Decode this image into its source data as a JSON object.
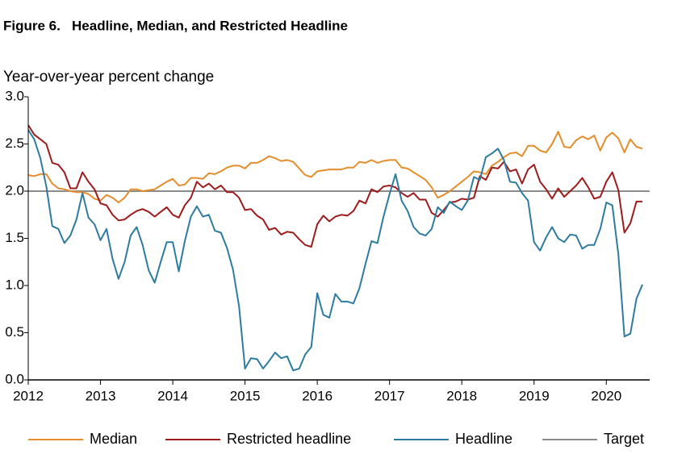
{
  "chart_data": {
    "type": "line",
    "title": "Figure 6.   Headline, Median, and Restricted Headline",
    "y_label": "Year-over-year percent change",
    "x": [
      2012,
      2012.083,
      2012.167,
      2012.25,
      2012.333,
      2012.417,
      2012.5,
      2012.583,
      2012.667,
      2012.75,
      2012.833,
      2012.917,
      2013,
      2013.083,
      2013.167,
      2013.25,
      2013.333,
      2013.417,
      2013.5,
      2013.583,
      2013.667,
      2013.75,
      2013.833,
      2013.917,
      2014,
      2014.083,
      2014.167,
      2014.25,
      2014.333,
      2014.417,
      2014.5,
      2014.583,
      2014.667,
      2014.75,
      2014.833,
      2014.917,
      2015,
      2015.083,
      2015.167,
      2015.25,
      2015.333,
      2015.417,
      2015.5,
      2015.583,
      2015.667,
      2015.75,
      2015.833,
      2015.917,
      2016,
      2016.083,
      2016.167,
      2016.25,
      2016.333,
      2016.417,
      2016.5,
      2016.583,
      2016.667,
      2016.75,
      2016.833,
      2016.917,
      2017,
      2017.083,
      2017.167,
      2017.25,
      2017.333,
      2017.417,
      2017.5,
      2017.583,
      2017.667,
      2017.75,
      2017.833,
      2017.917,
      2018,
      2018.083,
      2018.167,
      2018.25,
      2018.333,
      2018.417,
      2018.5,
      2018.583,
      2018.667,
      2018.75,
      2018.833,
      2018.917,
      2019,
      2019.083,
      2019.167,
      2019.25,
      2019.333,
      2019.417,
      2019.5,
      2019.583,
      2019.667,
      2019.75,
      2019.833,
      2019.917,
      2020,
      2020.083,
      2020.167,
      2020.25,
      2020.333,
      2020.417,
      2020.5
    ],
    "series": [
      {
        "name": "Median",
        "color": "#e38d2c",
        "values": [
          2.17,
          2.16,
          2.18,
          2.18,
          2.08,
          2.03,
          2.02,
          2.0,
          1.99,
          1.99,
          1.97,
          1.92,
          1.9,
          1.96,
          1.93,
          1.88,
          1.93,
          2.02,
          2.02,
          2.0,
          2.01,
          2.02,
          2.06,
          2.1,
          2.13,
          2.06,
          2.07,
          2.14,
          2.14,
          2.13,
          2.19,
          2.18,
          2.21,
          2.25,
          2.27,
          2.27,
          2.24,
          2.3,
          2.3,
          2.33,
          2.37,
          2.35,
          2.32,
          2.33,
          2.31,
          2.24,
          2.17,
          2.15,
          2.21,
          2.22,
          2.23,
          2.23,
          2.23,
          2.25,
          2.25,
          2.31,
          2.3,
          2.33,
          2.3,
          2.32,
          2.33,
          2.33,
          2.25,
          2.24,
          2.2,
          2.16,
          2.12,
          2.04,
          1.93,
          1.96,
          2.0,
          2.05,
          2.1,
          2.15,
          2.21,
          2.2,
          2.18,
          2.27,
          2.31,
          2.36,
          2.4,
          2.41,
          2.37,
          2.48,
          2.48,
          2.43,
          2.41,
          2.5,
          2.63,
          2.47,
          2.46,
          2.54,
          2.58,
          2.55,
          2.59,
          2.43,
          2.57,
          2.62,
          2.56,
          2.41,
          2.55,
          2.47,
          2.45
        ]
      },
      {
        "name": "Restricted headline",
        "color": "#9e1b1b",
        "values": [
          2.7,
          2.6,
          2.55,
          2.5,
          2.3,
          2.28,
          2.2,
          2.03,
          2.03,
          2.2,
          2.1,
          2.02,
          1.87,
          1.85,
          1.75,
          1.69,
          1.7,
          1.75,
          1.79,
          1.81,
          1.78,
          1.73,
          1.78,
          1.83,
          1.75,
          1.72,
          1.85,
          1.93,
          2.1,
          2.04,
          2.08,
          2.02,
          2.06,
          1.99,
          1.99,
          1.93,
          1.8,
          1.81,
          1.74,
          1.7,
          1.59,
          1.61,
          1.54,
          1.57,
          1.56,
          1.49,
          1.43,
          1.41,
          1.65,
          1.74,
          1.68,
          1.73,
          1.75,
          1.74,
          1.79,
          1.9,
          1.87,
          2.02,
          1.99,
          2.05,
          2.06,
          2.04,
          1.98,
          1.94,
          1.98,
          1.91,
          1.91,
          1.77,
          1.73,
          1.8,
          1.88,
          1.89,
          1.92,
          1.91,
          1.93,
          2.16,
          2.12,
          2.25,
          2.24,
          2.31,
          2.21,
          2.23,
          2.08,
          2.23,
          2.28,
          2.1,
          2.02,
          1.92,
          2.03,
          1.94,
          2.0,
          2.06,
          2.14,
          2.04,
          1.92,
          1.94,
          2.1,
          2.2,
          2.01,
          1.56,
          1.66,
          1.89,
          1.89
        ]
      },
      {
        "name": "Headline",
        "color": "#2e7ba0",
        "values": [
          2.65,
          2.55,
          2.35,
          2.05,
          1.63,
          1.6,
          1.45,
          1.53,
          1.7,
          1.98,
          1.72,
          1.65,
          1.48,
          1.6,
          1.28,
          1.07,
          1.25,
          1.53,
          1.62,
          1.43,
          1.16,
          1.03,
          1.25,
          1.46,
          1.46,
          1.15,
          1.47,
          1.73,
          1.84,
          1.73,
          1.75,
          1.58,
          1.56,
          1.4,
          1.17,
          0.78,
          0.12,
          0.23,
          0.22,
          0.12,
          0.2,
          0.29,
          0.23,
          0.25,
          0.1,
          0.12,
          0.27,
          0.35,
          0.92,
          0.69,
          0.66,
          0.91,
          0.83,
          0.83,
          0.81,
          0.97,
          1.23,
          1.47,
          1.45,
          1.73,
          1.97,
          2.18,
          1.9,
          1.79,
          1.62,
          1.55,
          1.53,
          1.6,
          1.83,
          1.77,
          1.89,
          1.84,
          1.8,
          1.9,
          2.15,
          2.12,
          2.36,
          2.4,
          2.45,
          2.33,
          2.1,
          2.09,
          1.98,
          1.9,
          1.46,
          1.37,
          1.51,
          1.62,
          1.5,
          1.46,
          1.54,
          1.53,
          1.39,
          1.43,
          1.43,
          1.6,
          1.88,
          1.85,
          1.33,
          0.46,
          0.49,
          0.86,
          1.01
        ]
      }
    ],
    "target": {
      "name": "Target",
      "color": "#8c8c8c",
      "value": 2
    },
    "xlim": [
      2012,
      2020.6
    ],
    "xticks": [
      2012,
      2013,
      2014,
      2015,
      2016,
      2017,
      2018,
      2019,
      2020
    ],
    "ylim": [
      0,
      3
    ],
    "yticks": [
      {
        "value": 0,
        "label": "0.0"
      },
      {
        "value": 0.5,
        "label": "0.5"
      },
      {
        "value": 1,
        "label": "1.0"
      },
      {
        "value": 1.5,
        "label": "1.5"
      },
      {
        "value": 2,
        "label": "2.0"
      },
      {
        "value": 2.5,
        "label": "2.5"
      },
      {
        "value": 3,
        "label": "3.0"
      }
    ],
    "legend": "bottom"
  }
}
